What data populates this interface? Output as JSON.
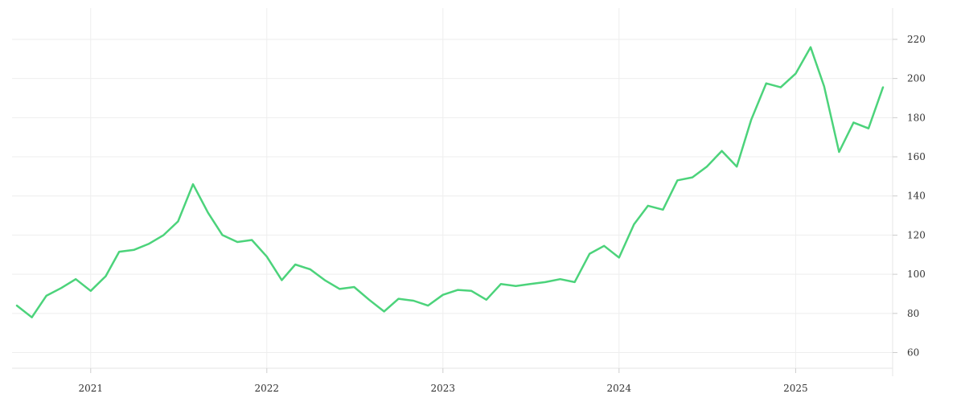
{
  "chart_data": {
    "type": "line",
    "title": "",
    "xlabel": "",
    "ylabel": "",
    "grid": true,
    "y_axis_side": "right",
    "line_color": "#4cd37b",
    "ylim": [
      52,
      236
    ],
    "xlim": [
      "2020-08-01",
      "2025-07-01"
    ],
    "y_ticks": [
      60,
      80,
      100,
      120,
      140,
      160,
      180,
      200,
      220
    ],
    "x_ticks": [
      {
        "date": "2021-01-01",
        "label": "2021"
      },
      {
        "date": "2022-01-01",
        "label": "2022"
      },
      {
        "date": "2023-01-01",
        "label": "2023"
      },
      {
        "date": "2024-01-01",
        "label": "2024"
      },
      {
        "date": "2025-01-01",
        "label": "2025"
      }
    ],
    "x": [
      "2020-08-01",
      "2020-09-01",
      "2020-10-01",
      "2020-11-01",
      "2020-12-01",
      "2021-01-01",
      "2021-02-01",
      "2021-03-01",
      "2021-04-01",
      "2021-05-01",
      "2021-06-01",
      "2021-07-01",
      "2021-08-01",
      "2021-09-01",
      "2021-10-01",
      "2021-11-01",
      "2021-12-01",
      "2022-01-01",
      "2022-02-01",
      "2022-03-01",
      "2022-04-01",
      "2022-05-01",
      "2022-06-01",
      "2022-07-01",
      "2022-08-01",
      "2022-09-01",
      "2022-10-01",
      "2022-11-01",
      "2022-12-01",
      "2023-01-01",
      "2023-02-01",
      "2023-03-01",
      "2023-04-01",
      "2023-05-01",
      "2023-06-01",
      "2023-07-01",
      "2023-08-01",
      "2023-09-01",
      "2023-10-01",
      "2023-11-01",
      "2023-12-01",
      "2024-01-01",
      "2024-02-01",
      "2024-03-01",
      "2024-04-01",
      "2024-05-01",
      "2024-06-01",
      "2024-07-01",
      "2024-08-01",
      "2024-09-01",
      "2024-10-01",
      "2024-11-01",
      "2024-12-01",
      "2025-01-01",
      "2025-02-01",
      "2025-03-01",
      "2025-04-01",
      "2025-05-01",
      "2025-06-01",
      "2025-07-01"
    ],
    "values": [
      84,
      78,
      89,
      93,
      97.5,
      91.5,
      99,
      111.5,
      112.5,
      115.5,
      120,
      127,
      146,
      131.5,
      120,
      116.5,
      117.5,
      109,
      97,
      105,
      102.5,
      97,
      92.5,
      93.5,
      87,
      81,
      87.5,
      86.5,
      84,
      89.5,
      92,
      91.5,
      87,
      95,
      94,
      95,
      96,
      97.5,
      96,
      110.5,
      114.5,
      108.5,
      125.5,
      135,
      133,
      148,
      149.5,
      155,
      163,
      155,
      179,
      197.5,
      195.5,
      202.5,
      216,
      196,
      162.5,
      177.5,
      174.5,
      195.5
    ]
  }
}
